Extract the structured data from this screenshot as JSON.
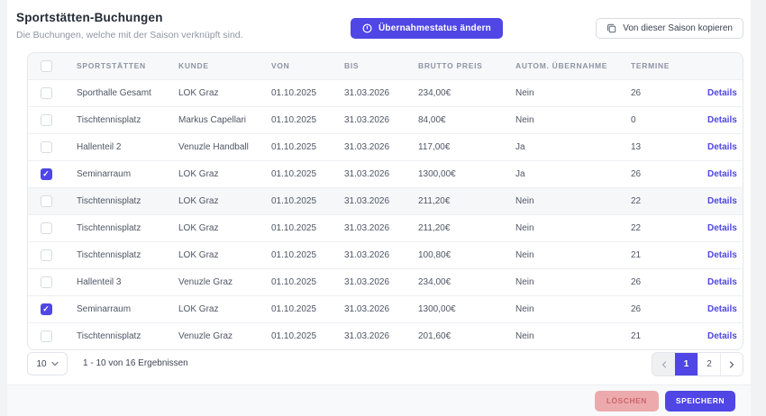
{
  "page": {
    "title": "Sportstätten-Buchungen",
    "subtitle": "Die Buchungen, welche mit der Saison verknüpft sind."
  },
  "toolbar": {
    "change_status_label": "Übernahmestatus ändern",
    "copy_season_label": "Von dieser Saison kopieren"
  },
  "table": {
    "columns": [
      "SPORTSTÄTTEN",
      "KUNDE",
      "VON",
      "BIS",
      "BRUTTO PREIS",
      "AUTOM. ÜBERNAHME",
      "TERMINE"
    ],
    "details_label": "Details",
    "rows": [
      {
        "sportstaette": "Sporthalle Gesamt",
        "kunde": "LOK Graz",
        "von": "01.10.2025",
        "bis": "31.03.2026",
        "brutto_preis": "234,00€",
        "autom_uebernahme": "Nein",
        "termine": "26",
        "checked": false,
        "highlighted": false
      },
      {
        "sportstaette": "Tischtennisplatz",
        "kunde": "Markus Capellari",
        "von": "01.10.2025",
        "bis": "31.03.2026",
        "brutto_preis": "84,00€",
        "autom_uebernahme": "Nein",
        "termine": "0",
        "checked": false,
        "highlighted": false
      },
      {
        "sportstaette": "Hallenteil 2",
        "kunde": "Venuzle Handball",
        "von": "01.10.2025",
        "bis": "31.03.2026",
        "brutto_preis": "117,00€",
        "autom_uebernahme": "Ja",
        "termine": "13",
        "checked": false,
        "highlighted": false
      },
      {
        "sportstaette": "Seminarraum",
        "kunde": "LOK Graz",
        "von": "01.10.2025",
        "bis": "31.03.2026",
        "brutto_preis": "1300,00€",
        "autom_uebernahme": "Ja",
        "termine": "26",
        "checked": true,
        "highlighted": false
      },
      {
        "sportstaette": "Tischtennisplatz",
        "kunde": "LOK Graz",
        "von": "01.10.2025",
        "bis": "31.03.2026",
        "brutto_preis": "211,20€",
        "autom_uebernahme": "Nein",
        "termine": "22",
        "checked": false,
        "highlighted": true
      },
      {
        "sportstaette": "Tischtennisplatz",
        "kunde": "LOK Graz",
        "von": "01.10.2025",
        "bis": "31.03.2026",
        "brutto_preis": "211,20€",
        "autom_uebernahme": "Nein",
        "termine": "22",
        "checked": false,
        "highlighted": false
      },
      {
        "sportstaette": "Tischtennisplatz",
        "kunde": "LOK Graz",
        "von": "01.10.2025",
        "bis": "31.03.2026",
        "brutto_preis": "100,80€",
        "autom_uebernahme": "Nein",
        "termine": "21",
        "checked": false,
        "highlighted": false
      },
      {
        "sportstaette": "Hallenteil 3",
        "kunde": "Venuzle Graz",
        "von": "01.10.2025",
        "bis": "31.03.2026",
        "brutto_preis": "234,00€",
        "autom_uebernahme": "Nein",
        "termine": "26",
        "checked": false,
        "highlighted": false
      },
      {
        "sportstaette": "Seminarraum",
        "kunde": "LOK Graz",
        "von": "01.10.2025",
        "bis": "31.03.2026",
        "brutto_preis": "1300,00€",
        "autom_uebernahme": "Nein",
        "termine": "26",
        "checked": true,
        "highlighted": false
      },
      {
        "sportstaette": "Tischtennisplatz",
        "kunde": "Venuzle Graz",
        "von": "01.10.2025",
        "bis": "31.03.2026",
        "brutto_preis": "201,60€",
        "autom_uebernahme": "Nein",
        "termine": "21",
        "checked": false,
        "highlighted": false
      }
    ]
  },
  "pagination": {
    "page_size": "10",
    "results_text": "1 - 10 von 16 Ergebnissen",
    "pages": [
      "1",
      "2"
    ],
    "active_page": "1"
  },
  "footer": {
    "delete_label": "LÖSCHEN",
    "save_label": "SPEICHERN"
  },
  "colors": {
    "primary": "#4f46e5",
    "delete_button_bg": "#edaaac",
    "delete_button_text": "#ca666d",
    "header_bg": "#f7f8fa",
    "highlighted_row_bg": "#f6f7f9"
  }
}
